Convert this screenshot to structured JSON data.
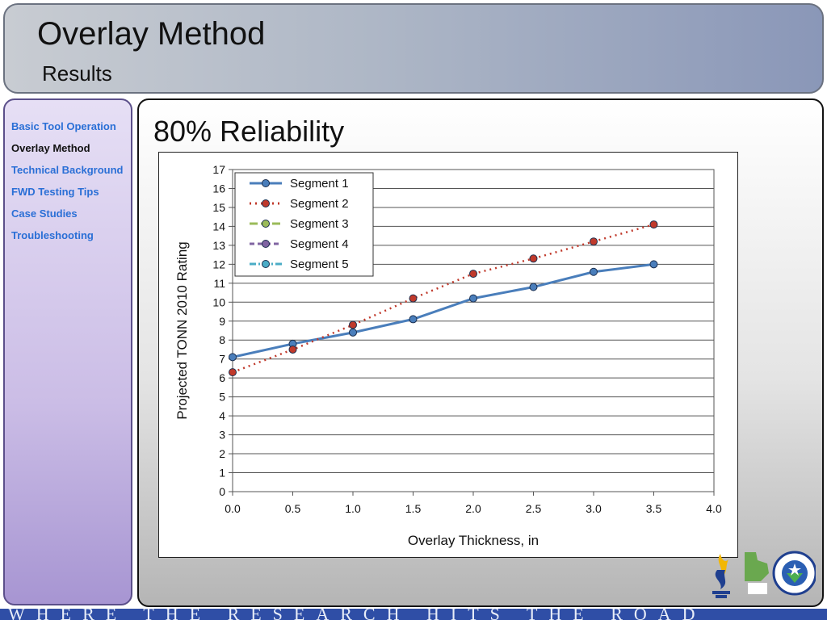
{
  "header": {
    "title": "Overlay Method",
    "subtitle": "Results"
  },
  "sidebar": {
    "items": [
      {
        "label": "Basic Tool Operation",
        "active": false
      },
      {
        "label": "Overlay Method",
        "active": true
      },
      {
        "label": "Technical Background",
        "active": false
      },
      {
        "label": "FWD Testing Tips",
        "active": false
      },
      {
        "label": "Case Studies",
        "active": false
      },
      {
        "label": "Troubleshooting",
        "active": false
      }
    ]
  },
  "main": {
    "heading": "80% Reliability"
  },
  "chart_data": {
    "type": "line",
    "title": "",
    "xlabel": "Overlay Thickness, in",
    "ylabel": "Projected TONN 2010 Rating",
    "xlim": [
      0,
      4
    ],
    "ylim": [
      0,
      17
    ],
    "xticks": [
      "0.0",
      "0.5",
      "1.0",
      "1.5",
      "2.0",
      "2.5",
      "3.0",
      "3.5",
      "4.0"
    ],
    "yticks": [
      0,
      1,
      2,
      3,
      4,
      5,
      6,
      7,
      8,
      9,
      10,
      11,
      12,
      13,
      14,
      15,
      16,
      17
    ],
    "grid": true,
    "legend": "top-left",
    "series": [
      {
        "name": "Segment 1",
        "color": "#4a7ebb",
        "marker": "#4a7ebb",
        "dash": "solid",
        "x": [
          0,
          0.5,
          1.0,
          1.5,
          2.0,
          2.5,
          3.0,
          3.5
        ],
        "y": [
          7.1,
          7.8,
          8.4,
          9.1,
          10.2,
          10.8,
          11.6,
          12.0
        ]
      },
      {
        "name": "Segment 2",
        "color": "#c0392b",
        "marker": "#c0392b",
        "dash": "dot",
        "x": [
          0,
          0.5,
          1.0,
          1.5,
          2.0,
          2.5,
          3.0,
          3.5
        ],
        "y": [
          6.3,
          7.5,
          8.8,
          10.2,
          11.5,
          12.3,
          13.2,
          14.1
        ]
      },
      {
        "name": "Segment 3",
        "color": "#9bbb59",
        "marker": "#9bbb59",
        "dash": "longdash",
        "x": [],
        "y": []
      },
      {
        "name": "Segment 4",
        "color": "#8064a2",
        "marker": "#8064a2",
        "dash": "dash",
        "x": [],
        "y": []
      },
      {
        "name": "Segment 5",
        "color": "#4bacc6",
        "marker": "#4bacc6",
        "dash": "dashdot",
        "x": [],
        "y": []
      }
    ]
  },
  "footer": {
    "tagline": "WHERE THE RESEARCH HITS THE ROAD"
  }
}
